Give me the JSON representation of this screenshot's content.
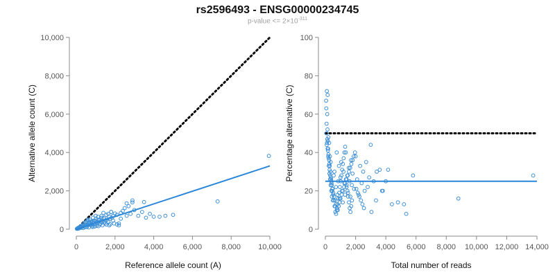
{
  "title": "rs2596493 - ENSG00000234745",
  "subtitle": {
    "prefix": "p-value <= 2×10",
    "exponent": "-311"
  },
  "colors": {
    "points": "#3d8fd6",
    "fit": "#2a86d9",
    "reference": "#000000",
    "axis": "#888888"
  },
  "chart_data": [
    {
      "type": "scatter",
      "xlabel": "Reference allele count (A)",
      "ylabel": "Alternative allele count (C)",
      "xlim": [
        0,
        10000
      ],
      "ylim": [
        0,
        10000
      ],
      "xticks": [
        0,
        2000,
        4000,
        6000,
        8000,
        10000
      ],
      "yticks": [
        0,
        2000,
        4000,
        6000,
        8000,
        10000
      ],
      "xtick_labels": [
        "0",
        "2,000",
        "4,000",
        "6,000",
        "8,000",
        "10,000"
      ],
      "ytick_labels": [
        "0",
        "2,000",
        "4,000",
        "6,000",
        "8,000",
        "10,000"
      ],
      "reference_line": {
        "style": "dotted",
        "x": [
          0,
          10000
        ],
        "y": [
          0,
          10000
        ]
      },
      "fit_line": {
        "style": "solid",
        "x": [
          0,
          10000
        ],
        "y": [
          0,
          3300
        ]
      },
      "points": {
        "x": [
          30,
          50,
          80,
          100,
          120,
          150,
          180,
          200,
          230,
          260,
          290,
          320,
          350,
          380,
          410,
          440,
          470,
          500,
          530,
          560,
          590,
          620,
          650,
          680,
          710,
          740,
          770,
          800,
          830,
          860,
          890,
          920,
          950,
          980,
          1010,
          1040,
          1080,
          1120,
          1160,
          1200,
          1250,
          1300,
          1350,
          1400,
          1450,
          1500,
          1550,
          1600,
          1650,
          1700,
          1750,
          1800,
          1850,
          1900,
          2000,
          2100,
          2200,
          2300,
          2400,
          2500,
          2600,
          2700,
          2800,
          2900,
          3000,
          3200,
          3400,
          3600,
          3800,
          4000,
          4300,
          4600,
          5000,
          7300,
          9950,
          600,
          800,
          1000,
          1200,
          450,
          700,
          900,
          1100,
          1300,
          1500,
          1700,
          1900,
          2100,
          2300,
          300,
          550,
          750,
          1050,
          1250,
          1450,
          1650,
          250,
          350,
          650,
          850,
          950,
          1150,
          1350,
          1550,
          1750,
          1950,
          2200,
          2600,
          2900,
          3500,
          1800,
          1400,
          1000,
          600
        ],
        "y": [
          20,
          40,
          60,
          30,
          90,
          50,
          120,
          70,
          150,
          100,
          180,
          130,
          250,
          160,
          300,
          200,
          350,
          250,
          400,
          220,
          450,
          300,
          280,
          320,
          500,
          260,
          380,
          420,
          240,
          600,
          350,
          300,
          450,
          280,
          550,
          400,
          320,
          650,
          480,
          500,
          380,
          700,
          420,
          550,
          600,
          450,
          750,
          500,
          800,
          650,
          550,
          900,
          600,
          700,
          820,
          750,
          300,
          850,
          950,
          1100,
          700,
          1200,
          800,
          1400,
          1000,
          700,
          900,
          600,
          800,
          650,
          650,
          700,
          750,
          1450,
          3820,
          200,
          150,
          300,
          250,
          100,
          350,
          400,
          500,
          600,
          300,
          200,
          450,
          250,
          550,
          180,
          120,
          220,
          180,
          280,
          350,
          400,
          80,
          60,
          90,
          120,
          140,
          160,
          200,
          240,
          260,
          300,
          200,
          1350,
          1500,
          1420,
          900,
          850,
          700,
          500
        ]
      }
    },
    {
      "type": "scatter",
      "xlabel": "Total number of reads",
      "ylabel": "Percentage alternative (C)",
      "xlim": [
        0,
        14000
      ],
      "ylim": [
        0,
        100
      ],
      "xticks": [
        0,
        2000,
        4000,
        6000,
        8000,
        10000,
        12000,
        14000
      ],
      "yticks": [
        0,
        20,
        40,
        60,
        80,
        100
      ],
      "xtick_labels": [
        "0",
        "2,000",
        "4,000",
        "6,000",
        "8,000",
        "10,000",
        "12,000",
        "14,000"
      ],
      "ytick_labels": [
        "0",
        "20",
        "40",
        "60",
        "80",
        "100"
      ],
      "reference_line": {
        "style": "dotted",
        "x": [
          0,
          14000
        ],
        "y": [
          50,
          50
        ]
      },
      "fit_line": {
        "style": "solid",
        "x": [
          0,
          14000
        ],
        "y": [
          25,
          25
        ]
      },
      "points": {
        "x": [
          50,
          100,
          150,
          200,
          250,
          300,
          350,
          400,
          450,
          500,
          550,
          600,
          650,
          700,
          750,
          800,
          850,
          900,
          950,
          1000,
          1050,
          1100,
          1150,
          1200,
          1250,
          1300,
          1350,
          1400,
          1450,
          1500,
          1550,
          1600,
          1650,
          1700,
          1750,
          1800,
          1900,
          2000,
          2100,
          2200,
          2300,
          2400,
          2500,
          2600,
          2700,
          2800,
          2900,
          3000,
          3200,
          3400,
          3600,
          3800,
          4000,
          4400,
          4800,
          5200,
          5800,
          8800,
          13750,
          60,
          80,
          120,
          140,
          160,
          180,
          220,
          260,
          280,
          320,
          380,
          420,
          480,
          520,
          580,
          640,
          700,
          760,
          820,
          880,
          940,
          1000,
          1080,
          1160,
          1240,
          1320,
          1400,
          1480,
          1560,
          1640,
          1720,
          1800,
          1880,
          1960,
          2050,
          2150,
          2250,
          2350,
          2450,
          2550,
          3050,
          3350,
          3750,
          4150,
          5350,
          90,
          130,
          170,
          210,
          250,
          290,
          330,
          370,
          410,
          460,
          510,
          560,
          610,
          660,
          710,
          760,
          810,
          860,
          910,
          960,
          1010,
          1060,
          1110,
          1160,
          1210,
          1260,
          1310,
          1360,
          1410,
          1460,
          1510,
          1560,
          1610,
          1660,
          1710,
          1760,
          70,
          110,
          150,
          190,
          230,
          270,
          310,
          350,
          390,
          430
        ],
        "y": [
          67,
          72,
          70,
          48,
          45,
          38,
          35,
          25,
          20,
          15,
          28,
          30,
          12,
          22,
          40,
          18,
          25,
          33,
          16,
          27,
          35,
          20,
          14,
          30,
          24,
          18,
          40,
          22,
          28,
          19,
          32,
          25,
          17,
          36,
          23,
          29,
          21,
          38,
          26,
          18,
          33,
          24,
          30,
          20,
          35,
          22,
          27,
          44,
          25,
          30,
          31,
          20,
          25,
          13,
          14,
          13,
          28,
          16,
          28,
          63,
          55,
          60,
          52,
          46,
          42,
          37,
          34,
          31,
          28,
          26,
          23,
          21,
          19,
          17,
          15,
          13,
          11,
          10,
          12,
          14,
          16,
          18,
          20,
          22,
          24,
          26,
          28,
          30,
          32,
          34,
          36,
          38,
          40,
          21,
          19,
          17,
          15,
          13,
          11,
          9,
          15,
          20,
          31,
          8,
          44,
          47,
          41,
          39,
          36,
          33,
          30,
          27,
          24,
          21,
          18,
          15,
          12,
          9,
          8,
          10,
          13,
          16,
          19,
          22,
          25,
          28,
          31,
          34,
          37,
          40,
          43,
          26,
          23,
          20,
          17,
          14,
          11,
          9,
          12,
          15,
          50,
          45,
          42,
          38,
          33,
          29,
          26,
          23,
          20,
          17
        ]
      }
    }
  ]
}
